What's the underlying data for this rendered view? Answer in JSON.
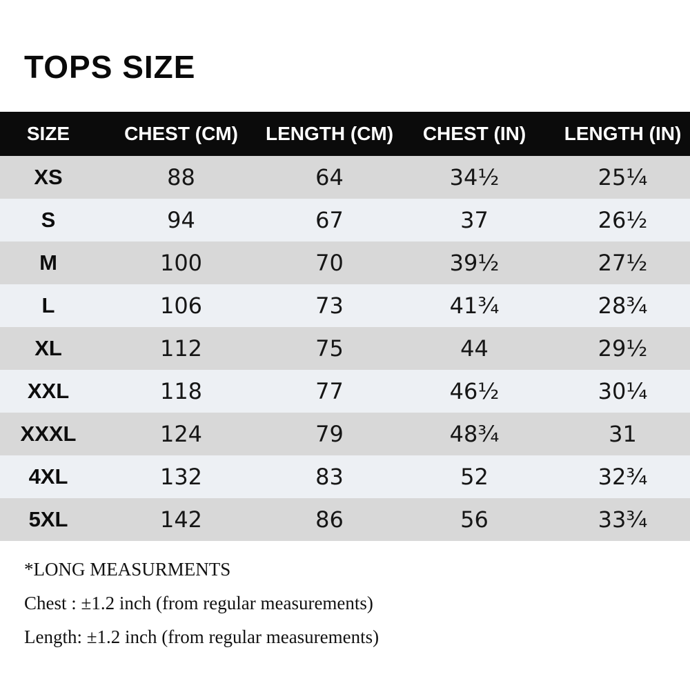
{
  "title": "TOPS SIZE",
  "chart_data": {
    "type": "table",
    "title": "TOPS SIZE",
    "columns": [
      "SIZE",
      "CHEST (CM)",
      "LENGTH (CM)",
      "CHEST (IN)",
      "LENGTH (IN)"
    ],
    "rows": [
      [
        "XS",
        "88",
        "64",
        "34½",
        "25¼"
      ],
      [
        "S",
        "94",
        "67",
        "37",
        "26½"
      ],
      [
        "M",
        "100",
        "70",
        "39½",
        "27½"
      ],
      [
        "L",
        "106",
        "73",
        "41¾",
        "28¾"
      ],
      [
        "XL",
        "112",
        "75",
        "44",
        "29½"
      ],
      [
        "XXL",
        "118",
        "77",
        "46½",
        "30¼"
      ],
      [
        "XXXL",
        "124",
        "79",
        "48¾",
        "31"
      ],
      [
        "4XL",
        "132",
        "83",
        "52",
        "32¾"
      ],
      [
        "5XL",
        "142",
        "86",
        "56",
        "33¾"
      ]
    ],
    "layout": {
      "header_background": "#0b0b0b",
      "header_text_color": "#ffffff",
      "row_odd_background": "#d8d8d8",
      "row_even_background": "#edf0f4",
      "text_color": "#161616"
    }
  },
  "notes": [
    "*LONG MEASURMENTS",
    "Chest : ±1.2 inch (from regular measurements)",
    "Length: ±1.2 inch (from regular measurements)"
  ]
}
